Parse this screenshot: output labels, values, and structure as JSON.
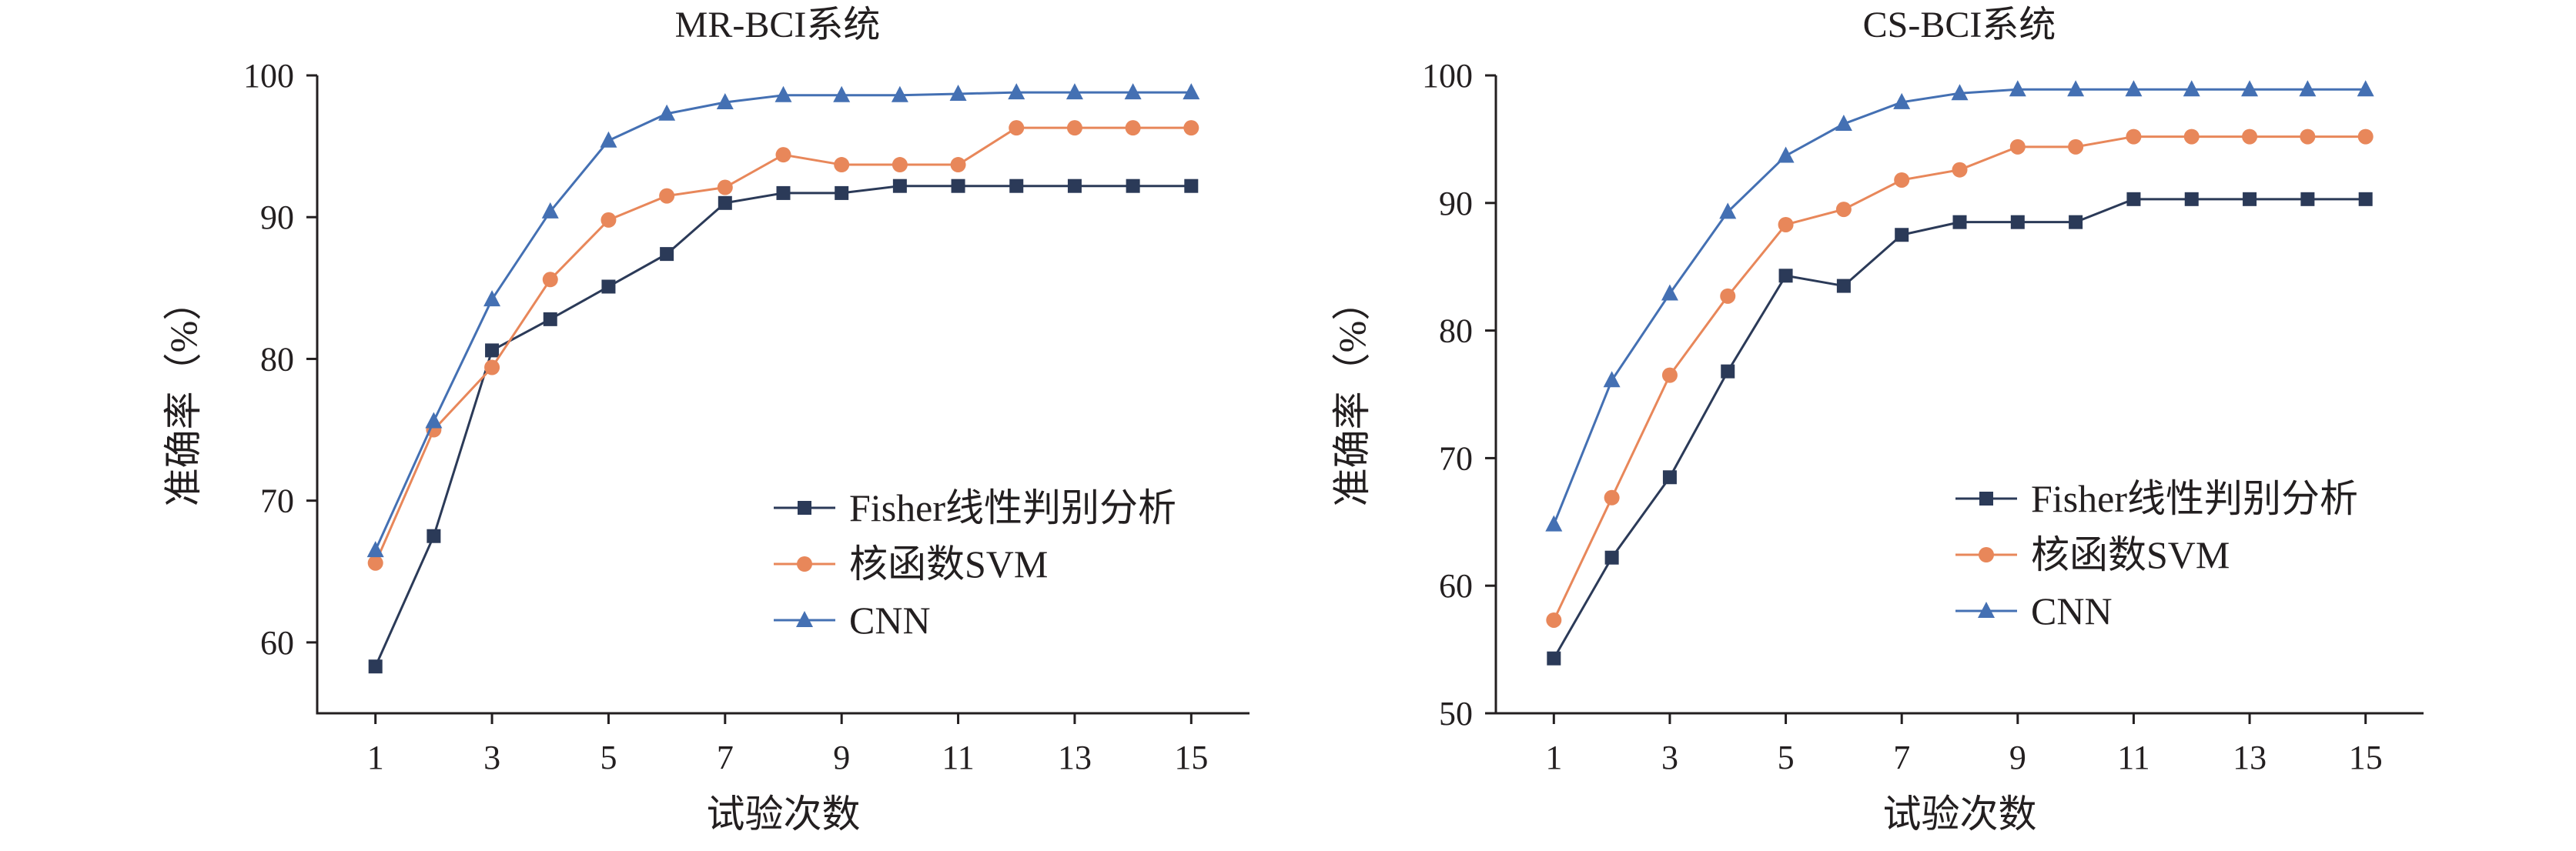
{
  "colors": {
    "fisher": "#2b3a58",
    "svm": "#e8875a",
    "cnn": "#4470b3",
    "axis": "#231f20"
  },
  "chart_data": [
    {
      "type": "line",
      "title": "MR-BCI系统",
      "xlabel": "试验次数",
      "ylabel": "准确率（%）",
      "x": [
        1,
        2,
        3,
        4,
        5,
        6,
        7,
        8,
        9,
        10,
        11,
        12,
        13,
        14,
        15
      ],
      "xticks": [
        "1",
        "3",
        "5",
        "7",
        "9",
        "11",
        "13",
        "15"
      ],
      "yticks": [
        "60",
        "70",
        "80",
        "90",
        "100"
      ],
      "xlim": [
        0,
        16
      ],
      "ylim": [
        55,
        100
      ],
      "grid": false,
      "legend_position": "bottom-right",
      "series": [
        {
          "name": "Fisher线性判别分析",
          "marker": "square",
          "values": [
            58.3,
            67.5,
            80.6,
            82.8,
            85.1,
            87.4,
            91.0,
            91.7,
            91.7,
            92.2,
            92.2,
            92.2,
            92.2,
            92.2,
            92.2
          ]
        },
        {
          "name": "核函数SVM",
          "marker": "circle",
          "values": [
            65.6,
            75.0,
            79.4,
            85.6,
            89.8,
            91.5,
            92.1,
            94.4,
            93.7,
            93.7,
            93.7,
            96.3,
            96.3,
            96.3,
            96.3
          ]
        },
        {
          "name": "CNN",
          "marker": "triangle",
          "values": [
            66.5,
            75.6,
            84.2,
            90.4,
            95.4,
            97.3,
            98.1,
            98.6,
            98.6,
            98.6,
            98.7,
            98.8,
            98.8,
            98.8,
            98.8
          ]
        }
      ]
    },
    {
      "type": "line",
      "title": "CS-BCI系统",
      "xlabel": "试验次数",
      "ylabel": "准确率（%）",
      "x": [
        1,
        2,
        3,
        4,
        5,
        6,
        7,
        8,
        9,
        10,
        11,
        12,
        13,
        14,
        15
      ],
      "xticks": [
        "1",
        "3",
        "5",
        "7",
        "9",
        "11",
        "13",
        "15"
      ],
      "yticks": [
        "50",
        "60",
        "70",
        "80",
        "90",
        "100"
      ],
      "xlim": [
        0,
        16
      ],
      "ylim": [
        50,
        100
      ],
      "grid": false,
      "legend_position": "bottom-right",
      "series": [
        {
          "name": "Fisher线性判别分析",
          "marker": "square",
          "values": [
            54.3,
            62.2,
            68.5,
            76.8,
            84.3,
            83.5,
            87.5,
            88.5,
            88.5,
            88.5,
            90.3,
            90.3,
            90.3,
            90.3,
            90.3
          ]
        },
        {
          "name": "核函数SVM",
          "marker": "circle",
          "values": [
            57.3,
            66.9,
            76.5,
            82.7,
            88.3,
            89.5,
            91.8,
            92.6,
            94.4,
            94.4,
            95.2,
            95.2,
            95.2,
            95.2,
            95.2
          ]
        },
        {
          "name": "CNN",
          "marker": "triangle",
          "values": [
            64.8,
            76.1,
            82.9,
            89.3,
            93.7,
            96.2,
            97.9,
            98.6,
            98.9,
            98.9,
            98.9,
            98.9,
            98.9,
            98.9,
            98.9
          ]
        }
      ]
    }
  ]
}
